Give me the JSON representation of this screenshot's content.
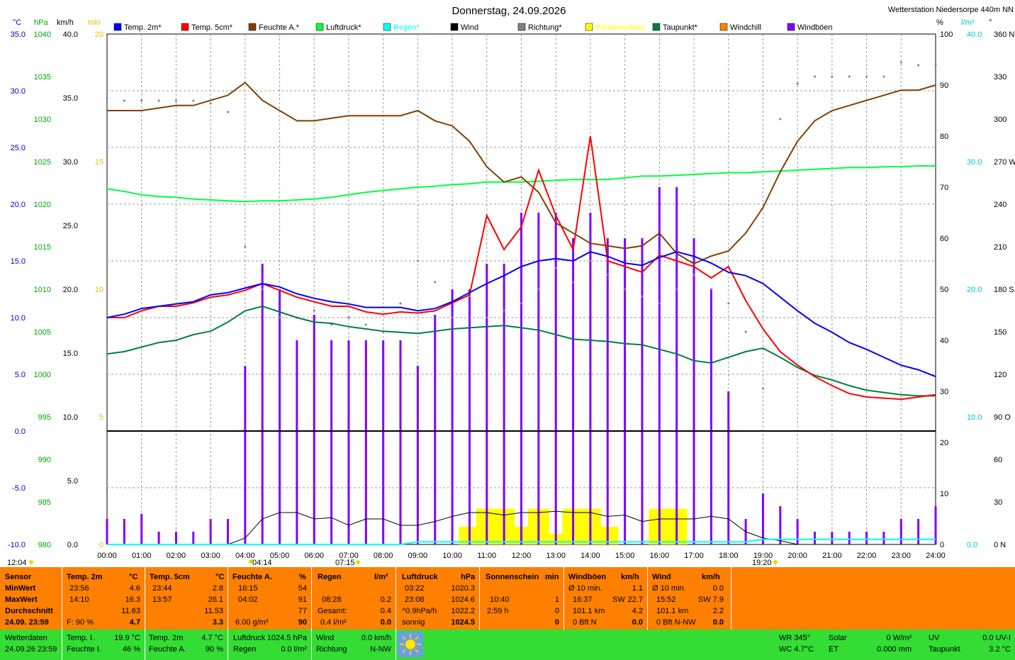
{
  "title": "Donnerstag, 24.09.2026",
  "station": "Wetterstation Niedersorpe 440m NN",
  "colors": {
    "temp2m": "#0000ff",
    "temp5cm": "#ff0000",
    "feuchte": "#804000",
    "luftdruck": "#00ff40",
    "regen": "#00dddd",
    "wind": "#000000",
    "richtung": "#808080",
    "sonne": "#ffff00",
    "taupunkt": "#007f40",
    "windchill": "#ff8000",
    "windboeen": "#8000ff",
    "axis_c": "#0000cc",
    "axis_hpa": "#00aa00",
    "axis_min": "#e0c000",
    "axis_rain": "#00c8c8"
  },
  "legend": [
    {
      "label": "Temp. 2m*",
      "color": "#0000ff"
    },
    {
      "label": "Temp. 5cm*",
      "color": "#ff0000"
    },
    {
      "label": "Feuchte A.*",
      "color": "#804000"
    },
    {
      "label": "Luftdruck*",
      "color": "#00ff40"
    },
    {
      "label": "Regen*",
      "color": "#00ffff"
    },
    {
      "label": "Wind",
      "color": "#000000"
    },
    {
      "label": "Richtung*",
      "color": "#808080"
    },
    {
      "label": "Sonnenschein",
      "color": "#ffff00"
    },
    {
      "label": "Taupunkt*",
      "color": "#007f40"
    },
    {
      "label": "Windchill",
      "color": "#ff8000"
    },
    {
      "label": "Windböen",
      "color": "#8000ff"
    }
  ],
  "axis_units": {
    "c": "°C",
    "hpa": "hPa",
    "kmh": "km/h",
    "min": "min",
    "pct": "%",
    "rain": "l/m²",
    "deg": "°"
  },
  "axes": {
    "c": [
      "35.0",
      "30.0",
      "25.0",
      "20.0",
      "15.0",
      "10.0",
      "5.0",
      "0.0",
      "-5.0",
      "-10.0"
    ],
    "hpa": [
      "1040",
      "1035",
      "1030",
      "1025",
      "1020",
      "1015",
      "1010",
      "1005",
      "1000",
      "995",
      "990",
      "985",
      "980"
    ],
    "kmh": [
      "40.0",
      "35.0",
      "30.0",
      "25.0",
      "20.0",
      "15.0",
      "10.0",
      "5.0",
      "0.0"
    ],
    "min": [
      "20",
      "15",
      "10",
      "5",
      "0"
    ],
    "pct": [
      "100",
      "90",
      "80",
      "70",
      "60",
      "50",
      "40",
      "30",
      "20",
      "10",
      "0"
    ],
    "rain": [
      "40.0",
      "30.0",
      "20.0",
      "10.0",
      "0.0"
    ],
    "deg": [
      "360 N",
      "330",
      "300",
      "270 W",
      "240",
      "210",
      "180 S",
      "150",
      "120",
      "90 O",
      "60",
      "30",
      "0 N"
    ]
  },
  "time_ticks": [
    "00:00",
    "01:00",
    "02:00",
    "03:00",
    "04:00",
    "05:00",
    "06:00",
    "07:00",
    "08:00",
    "09:00",
    "10:00",
    "11:00",
    "12:00",
    "13:00",
    "14:00",
    "15:00",
    "16:00",
    "17:00",
    "18:00",
    "19:00",
    "20:00",
    "21:00",
    "22:00",
    "23:00",
    "24:00"
  ],
  "markers": {
    "sun_culm": "12:04",
    "moonset": "04:14",
    "sunrise": "07:15",
    "sunset": "19:20"
  },
  "chart_data": {
    "type": "line",
    "x_unit": "hour of day",
    "x": [
      0,
      0.5,
      1,
      1.5,
      2,
      2.5,
      3,
      3.5,
      4,
      4.5,
      5,
      5.5,
      6,
      6.5,
      7,
      7.5,
      8,
      8.5,
      9,
      9.5,
      10,
      10.5,
      11,
      11.5,
      12,
      12.5,
      13,
      13.5,
      14,
      14.5,
      15,
      15.5,
      16,
      16.5,
      17,
      17.5,
      18,
      18.5,
      19,
      19.5,
      20,
      20.5,
      21,
      21.5,
      22,
      22.5,
      23,
      23.5,
      24
    ],
    "series": [
      {
        "name": "Temp. 2m*",
        "unit": "°C",
        "values": [
          10,
          10.3,
          10.8,
          11,
          11.2,
          11.4,
          12,
          12.2,
          12.6,
          13,
          12.7,
          12.1,
          11.7,
          11.4,
          11.2,
          10.9,
          10.9,
          10.9,
          10.6,
          10.8,
          11.4,
          12.2,
          13,
          13.7,
          14.5,
          15,
          15.2,
          15,
          15.8,
          15.4,
          14.8,
          14.6,
          15.3,
          15.8,
          15.4,
          14.8,
          14,
          13.7,
          13,
          11.8,
          10.6,
          9.5,
          8.7,
          7.8,
          7.2,
          6.5,
          5.8,
          5.4,
          4.8
        ]
      },
      {
        "name": "Temp. 5cm*",
        "unit": "°C",
        "values": [
          10,
          10,
          10.6,
          11,
          11,
          11.3,
          11.8,
          12,
          12.4,
          13,
          12.4,
          11.8,
          11.4,
          11,
          11,
          10.5,
          10.3,
          10.5,
          10.4,
          10.6,
          11.3,
          12,
          19,
          16,
          18,
          23,
          19,
          16,
          26,
          15,
          14.5,
          14,
          15.5,
          15,
          14.5,
          13.5,
          14.5,
          11.5,
          9,
          7,
          5.8,
          4.8,
          4,
          3.3,
          3,
          2.9,
          2.8,
          3,
          3.2
        ]
      },
      {
        "name": "Feuchte A.*",
        "unit": "%",
        "values": [
          85,
          85,
          85,
          85.5,
          86,
          86,
          87,
          88,
          90.5,
          87,
          85,
          83,
          83,
          83.5,
          84,
          84,
          84,
          84,
          85,
          83,
          82,
          79,
          74,
          71,
          72,
          69,
          63,
          61,
          59,
          58.5,
          58,
          58.5,
          61,
          57,
          55,
          56.5,
          57.5,
          61,
          66,
          73,
          79,
          83,
          85,
          86,
          87,
          88,
          89,
          89,
          90
        ]
      },
      {
        "name": "Luftdruck*",
        "unit": "hPa",
        "values": [
          1021.8,
          1021.5,
          1021.1,
          1020.9,
          1020.8,
          1020.6,
          1020.5,
          1020.4,
          1020.3,
          1020.4,
          1020.4,
          1020.5,
          1020.6,
          1020.8,
          1021.1,
          1021.4,
          1021.6,
          1021.8,
          1022,
          1022.1,
          1022.3,
          1022.4,
          1022.6,
          1022.6,
          1022.6,
          1022.7,
          1022.8,
          1022.9,
          1022.9,
          1022.9,
          1023.1,
          1023.3,
          1023.3,
          1023.4,
          1023.5,
          1023.6,
          1023.7,
          1023.7,
          1023.8,
          1023.9,
          1024,
          1024.1,
          1024.2,
          1024.3,
          1024.3,
          1024.4,
          1024.4,
          1024.5,
          1024.5
        ]
      },
      {
        "name": "Taupunkt*",
        "unit": "°C",
        "values": [
          6.8,
          7,
          7.4,
          7.8,
          8,
          8.5,
          8.8,
          9.6,
          10.6,
          11,
          10.5,
          10,
          9.6,
          9.5,
          9.2,
          9,
          8.8,
          8.7,
          8.6,
          8.8,
          9,
          9.1,
          9.2,
          9.3,
          9.1,
          8.9,
          8.5,
          8.1,
          8,
          7.9,
          7.7,
          7.6,
          7.2,
          6.8,
          6.2,
          6,
          6.5,
          7,
          7.3,
          6.5,
          5.6,
          4.9,
          4.5,
          4,
          3.6,
          3.4,
          3.2,
          3.1,
          3.1
        ]
      },
      {
        "name": "Wind",
        "unit": "km/h",
        "values": [
          0,
          0,
          0,
          0,
          0,
          0,
          0,
          0,
          0.5,
          2,
          2.5,
          2.5,
          2,
          2.1,
          1.5,
          2,
          2,
          1.5,
          1.5,
          1.8,
          2.2,
          2.5,
          2.5,
          2.3,
          2.5,
          2.5,
          2.6,
          2.5,
          2.5,
          2.2,
          2.3,
          1.8,
          2,
          2,
          2,
          2.2,
          2,
          1,
          0.5,
          0.3,
          0,
          0,
          0,
          0,
          0,
          0,
          0,
          0,
          0
        ]
      },
      {
        "name": "Windböen",
        "unit": "km/h",
        "values": [
          1,
          1,
          1.2,
          0.5,
          0.5,
          0.5,
          1,
          1,
          7,
          11,
          10,
          8,
          9,
          8,
          8,
          8,
          8,
          8,
          7,
          9,
          10,
          10,
          11,
          11,
          13,
          13,
          13,
          12,
          13,
          12,
          12,
          12,
          14,
          14,
          12,
          10,
          6,
          1,
          2,
          1.5,
          1,
          0.5,
          0.5,
          0.5,
          0.5,
          0.5,
          1,
          1,
          1.5
        ]
      },
      {
        "name": "Richtung*",
        "unit": "°",
        "values": [
          315,
          313,
          313,
          313,
          313,
          313,
          311,
          305,
          210,
          180,
          160,
          160,
          165,
          155,
          160,
          155,
          150,
          170,
          200,
          185,
          160,
          175,
          160,
          165,
          170,
          180,
          195,
          185,
          200,
          190,
          180,
          175,
          170,
          180,
          190,
          180,
          170,
          150,
          110,
          300,
          325,
          330,
          330,
          330,
          330,
          330,
          340,
          338,
          338
        ]
      },
      {
        "name": "Sonnenschein",
        "unit": "min",
        "values": [
          0,
          0,
          0,
          0,
          0,
          0,
          0,
          0,
          0,
          0,
          0,
          0,
          0,
          0,
          0,
          0,
          0,
          0,
          0,
          0,
          0,
          0.5,
          1,
          1,
          0.5,
          1,
          0.3,
          1,
          1,
          0.5,
          0,
          0,
          1,
          1,
          0,
          0,
          0,
          0,
          0,
          0,
          0,
          0,
          0,
          0,
          0,
          0,
          0,
          0,
          0
        ]
      },
      {
        "name": "Regen*",
        "unit": "l/m²",
        "values": [
          0,
          0,
          0,
          0,
          0,
          0,
          0,
          0,
          0,
          0,
          0,
          0,
          0,
          0,
          0,
          0,
          0,
          0,
          0.2,
          0.2,
          0.2,
          0.2,
          0.2,
          0.2,
          0.2,
          0.2,
          0.2,
          0.2,
          0.2,
          0.2,
          0.2,
          0.2,
          0.2,
          0.2,
          0.2,
          0.2,
          0.2,
          0.2,
          0.4,
          0.4,
          0.4,
          0.4,
          0.4,
          0.4,
          0.4,
          0.4,
          0.4,
          0.4,
          0.4
        ]
      }
    ],
    "ranges": {
      "c": [
        -10,
        35
      ],
      "hpa": [
        980,
        1040
      ],
      "kmh": [
        0,
        40
      ],
      "min": [
        0,
        20
      ],
      "pct": [
        0,
        100
      ],
      "rain": [
        0,
        40
      ],
      "deg": [
        0,
        360
      ]
    },
    "grid": true
  },
  "table": {
    "sensor": {
      "header": "Sensor",
      "rows": [
        "MinWert",
        "MaxWert",
        "Durchschnitt",
        "24.09. 23:59"
      ]
    },
    "t2m": {
      "header": "Temp. 2m",
      "unit": "°C",
      "min_time": "23:56",
      "min": "4.6",
      "max_time": "14:10",
      "max": "16.3",
      "avg": "11.63",
      "extra": "F: 90 %",
      "cur": "4.7"
    },
    "t5cm": {
      "header": "Temp. 5cm",
      "unit": "°C",
      "min_time": "23:44",
      "min": "2.8",
      "max_time": "13:57",
      "max": "26.1",
      "avg": "11.53",
      "cur": "3.3"
    },
    "feuchte": {
      "header": "Feuchte A.",
      "unit": "%",
      "min_time": "16:15",
      "min": "54",
      "max_time": "04:02",
      "max": "91",
      "avg": "77",
      "extra": "6.00 g/m³",
      "cur": "90"
    },
    "regen": {
      "header": "Regen",
      "unit": "l/m²",
      "t1": "08:28",
      "v1": "0.2",
      "t2": "Gesamt:",
      "v2": "0.4",
      "t3": "0.4 l/m²",
      "cur": "0.0"
    },
    "luftdruck": {
      "header": "Luftdruck",
      "unit": "hPa",
      "min_time": "03:22",
      "min": "1020.3",
      "max_time": "23:08",
      "max": "1024.6",
      "avg_label": "^0.9hPa/h",
      "avg": "1022.2",
      "extra": "sonnig",
      "cur": "1024.5"
    },
    "sonne": {
      "header": "Sonnenschein",
      "unit": "min",
      "t1": "10:40",
      "v1": "1",
      "t2": "2:59 h",
      "v2": "0",
      "cur": "0"
    },
    "boeen": {
      "header": "Windböen",
      "unit": "km/h",
      "l1": "Ø 10 min.",
      "v1": "1.1",
      "l2": "16:37",
      "d2": "SW",
      "v2": "22.7",
      "l3": "101.1 km",
      "v3": "4.2",
      "l4": "0 Bft N",
      "cur": "0.0"
    },
    "wind": {
      "header": "Wind",
      "unit": "km/h",
      "l1": "Ø 10 min.",
      "v1": "0.0",
      "l2": "15:52",
      "d2": "SW",
      "v2": "7.9",
      "l3": "101.1 km",
      "v3": "2.2",
      "l4": "0 Bft N-NW",
      "cur": "0.0"
    }
  },
  "bottom": {
    "wd_label": "Wetterdaten",
    "wd_time": "24.09.26 23:59",
    "ti_label": "Temp. I.",
    "ti_val": "19.9 °C",
    "fi_label": "Feuchte I.",
    "fi_val": "46 %",
    "t2_label": "Temp. 2m",
    "t2_val": "4.7 °C",
    "fa_label": "Feuchte A.",
    "fa_val": "90 %",
    "ld_label": "Luftdruck",
    "ld_val": "1024.5 hPa",
    "rg_label": "Regen",
    "rg_val": "0.0 l/m²",
    "wi_label": "Wind",
    "wi_val": "0.0 km/h",
    "ri_label": "Richtung",
    "ri_val": "N-NW",
    "wr": "WR 345°",
    "wc": "WC 4.7°C",
    "solar_label": "Solar",
    "solar_val": "0 W/m²",
    "et_label": "ET",
    "et_val": "0.000 mm",
    "uv_label": "UV",
    "uv_val": "0.0 UV-I",
    "tp_label": "Taupunkt",
    "tp_val": "3.2 °C",
    "icon": "sun-icon"
  }
}
